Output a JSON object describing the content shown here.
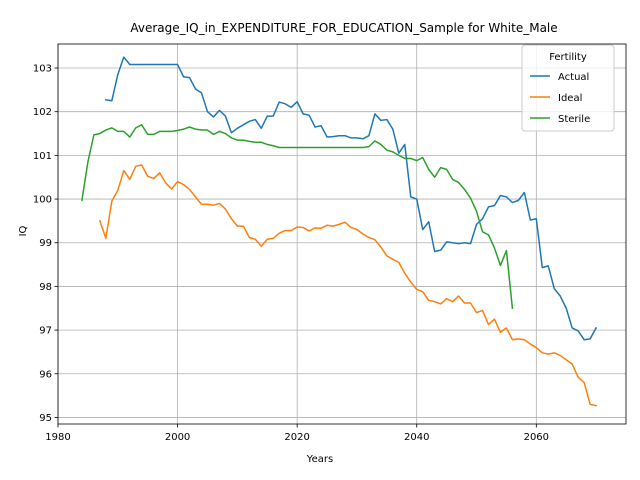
{
  "chart_data": {
    "type": "line",
    "title": "Average_IQ_in_EXPENDITURE_FOR_EDUCATION_Sample for White_Male",
    "xlabel": "Years",
    "ylabel": "IQ",
    "xlim": [
      1980,
      2075
    ],
    "ylim": [
      94.85,
      103.55
    ],
    "xticks": [
      "1980",
      "2000",
      "2020",
      "2040",
      "2060"
    ],
    "yticks": [
      "95",
      "96",
      "97",
      "98",
      "99",
      "100",
      "101",
      "102",
      "103"
    ],
    "grid": true,
    "legend": {
      "title": "Fertility",
      "placement": "upper-right"
    },
    "series": [
      {
        "name": "Actual",
        "color": "#1f77b4",
        "x": [
          1988,
          1989,
          1990,
          1991,
          1992,
          1993,
          1994,
          1995,
          1996,
          1997,
          1998,
          1999,
          2000,
          2001,
          2002,
          2003,
          2004,
          2005,
          2006,
          2007,
          2008,
          2009,
          2010,
          2011,
          2012,
          2013,
          2014,
          2015,
          2016,
          2017,
          2018,
          2019,
          2020,
          2021,
          2022,
          2023,
          2024,
          2025,
          2026,
          2027,
          2028,
          2029,
          2030,
          2031,
          2032,
          2033,
          2034,
          2035,
          2036,
          2037,
          2038,
          2039,
          2040,
          2041,
          2042,
          2043,
          2044,
          2045,
          2046,
          2047,
          2048,
          2049,
          2050,
          2051,
          2052,
          2053,
          2054,
          2055,
          2056,
          2057,
          2058,
          2059,
          2060,
          2061,
          2062,
          2063,
          2064,
          2065,
          2066,
          2067,
          2068,
          2069,
          2070
        ],
        "values": [
          102.27,
          102.25,
          102.85,
          103.25,
          103.08,
          103.08,
          103.08,
          103.08,
          103.08,
          103.08,
          103.08,
          103.08,
          103.08,
          102.8,
          102.78,
          102.52,
          102.43,
          102.0,
          101.88,
          102.03,
          101.9,
          101.52,
          101.62,
          101.7,
          101.78,
          101.82,
          101.62,
          101.9,
          101.9,
          102.22,
          102.18,
          102.1,
          102.23,
          101.95,
          101.92,
          101.65,
          101.68,
          101.42,
          101.43,
          101.45,
          101.45,
          101.4,
          101.4,
          101.38,
          101.45,
          101.95,
          101.8,
          101.82,
          101.6,
          101.05,
          101.25,
          100.05,
          100.0,
          99.3,
          99.48,
          98.8,
          98.83,
          99.02,
          99.0,
          98.98,
          99.0,
          98.98,
          99.42,
          99.55,
          99.82,
          99.85,
          100.08,
          100.05,
          99.92,
          99.97,
          100.15,
          99.52,
          99.55,
          98.43,
          98.47,
          97.95,
          97.78,
          97.5,
          97.05,
          96.98,
          96.78,
          96.8,
          97.05
        ]
      },
      {
        "name": "Ideal",
        "color": "#ff7f0e",
        "x": [
          1987,
          1988,
          1989,
          1990,
          1991,
          1992,
          1993,
          1994,
          1995,
          1996,
          1997,
          1998,
          1999,
          2000,
          2001,
          2002,
          2003,
          2004,
          2005,
          2006,
          2007,
          2008,
          2009,
          2010,
          2011,
          2012,
          2013,
          2014,
          2015,
          2016,
          2017,
          2018,
          2019,
          2020,
          2021,
          2022,
          2023,
          2024,
          2025,
          2026,
          2027,
          2028,
          2029,
          2030,
          2031,
          2032,
          2033,
          2034,
          2035,
          2036,
          2037,
          2038,
          2039,
          2040,
          2041,
          2042,
          2043,
          2044,
          2045,
          2046,
          2047,
          2048,
          2049,
          2050,
          2051,
          2052,
          2053,
          2054,
          2055,
          2056,
          2057,
          2058,
          2059,
          2060,
          2061,
          2062,
          2063,
          2064,
          2065,
          2066,
          2067,
          2068,
          2069,
          2070
        ],
        "values": [
          99.5,
          99.1,
          99.95,
          100.2,
          100.65,
          100.45,
          100.75,
          100.78,
          100.52,
          100.47,
          100.6,
          100.37,
          100.23,
          100.4,
          100.33,
          100.22,
          100.05,
          99.88,
          99.88,
          99.86,
          99.9,
          99.77,
          99.55,
          99.38,
          99.38,
          99.12,
          99.08,
          98.92,
          99.08,
          99.1,
          99.22,
          99.28,
          99.28,
          99.36,
          99.35,
          99.27,
          99.34,
          99.33,
          99.4,
          99.38,
          99.42,
          99.47,
          99.35,
          99.3,
          99.2,
          99.12,
          99.07,
          98.9,
          98.7,
          98.62,
          98.55,
          98.3,
          98.1,
          97.93,
          97.88,
          97.68,
          97.65,
          97.6,
          97.72,
          97.65,
          97.78,
          97.62,
          97.62,
          97.4,
          97.45,
          97.13,
          97.25,
          96.95,
          97.05,
          96.78,
          96.8,
          96.78,
          96.68,
          96.6,
          96.48,
          96.45,
          96.48,
          96.42,
          96.32,
          96.22,
          95.92,
          95.8,
          95.3,
          95.27
        ]
      },
      {
        "name": "Sterile",
        "color": "#2ca02c",
        "x": [
          1984,
          1985,
          1986,
          1987,
          1988,
          1989,
          1990,
          1991,
          1992,
          1993,
          1994,
          1995,
          1996,
          1997,
          1998,
          1999,
          2000,
          2001,
          2002,
          2003,
          2004,
          2005,
          2006,
          2007,
          2008,
          2009,
          2010,
          2011,
          2012,
          2013,
          2014,
          2015,
          2016,
          2017,
          2018,
          2019,
          2020,
          2021,
          2022,
          2023,
          2024,
          2025,
          2026,
          2027,
          2028,
          2029,
          2030,
          2031,
          2032,
          2033,
          2034,
          2035,
          2036,
          2037,
          2038,
          2039,
          2040,
          2041,
          2042,
          2043,
          2044,
          2045,
          2046,
          2047,
          2048,
          2049,
          2050,
          2051,
          2052,
          2053,
          2054,
          2055,
          2056
        ],
        "values": [
          99.97,
          100.85,
          101.47,
          101.5,
          101.58,
          101.63,
          101.55,
          101.55,
          101.42,
          101.63,
          101.7,
          101.48,
          101.48,
          101.55,
          101.55,
          101.55,
          101.57,
          101.6,
          101.65,
          101.6,
          101.58,
          101.58,
          101.48,
          101.55,
          101.5,
          101.4,
          101.35,
          101.35,
          101.32,
          101.3,
          101.3,
          101.25,
          101.22,
          101.18,
          101.18,
          101.18,
          101.18,
          101.18,
          101.18,
          101.18,
          101.18,
          101.18,
          101.18,
          101.18,
          101.18,
          101.18,
          101.18,
          101.18,
          101.2,
          101.33,
          101.25,
          101.12,
          101.08,
          101.0,
          100.93,
          100.93,
          100.88,
          100.95,
          100.68,
          100.5,
          100.72,
          100.68,
          100.45,
          100.38,
          100.22,
          100.02,
          99.72,
          99.25,
          99.18,
          98.88,
          98.48,
          98.82,
          97.5
        ]
      }
    ]
  }
}
